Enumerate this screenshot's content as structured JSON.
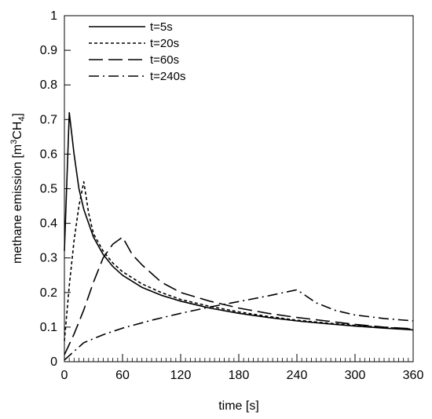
{
  "chart_data": {
    "type": "line",
    "title": "",
    "xlabel": "time [s]",
    "ylabel_main": "methane emission [m",
    "ylabel_sup": "3",
    "ylabel_mid": "CH",
    "ylabel_sub": "4",
    "ylabel_end": "]",
    "xlim": [
      0,
      360
    ],
    "ylim": [
      0,
      1
    ],
    "xticks": [
      0,
      60,
      120,
      180,
      240,
      300,
      360
    ],
    "yticks": [
      0,
      0.1,
      0.2,
      0.3,
      0.4,
      0.5,
      0.6,
      0.7,
      0.8,
      0.9,
      1
    ],
    "grid": false,
    "legend_position": "top-left",
    "series": [
      {
        "name": "t=5s",
        "dash": "solid",
        "x": [
          0,
          5,
          10,
          15,
          20,
          30,
          40,
          50,
          60,
          80,
          100,
          120,
          150,
          180,
          210,
          240,
          270,
          300,
          330,
          360
        ],
        "y": [
          0.32,
          0.72,
          0.6,
          0.5,
          0.44,
          0.36,
          0.31,
          0.275,
          0.25,
          0.215,
          0.192,
          0.175,
          0.155,
          0.14,
          0.128,
          0.118,
          0.11,
          0.103,
          0.097,
          0.092
        ]
      },
      {
        "name": "t=20s",
        "dash": "4,3",
        "x": [
          0,
          5,
          10,
          15,
          20,
          25,
          30,
          40,
          50,
          60,
          80,
          100,
          120,
          150,
          180,
          210,
          240,
          270,
          300,
          330,
          360
        ],
        "y": [
          0.06,
          0.22,
          0.35,
          0.45,
          0.52,
          0.43,
          0.37,
          0.32,
          0.285,
          0.26,
          0.225,
          0.2,
          0.18,
          0.16,
          0.144,
          0.131,
          0.12,
          0.112,
          0.105,
          0.099,
          0.094
        ]
      },
      {
        "name": "t=60s",
        "dash": "18,7",
        "x": [
          0,
          10,
          20,
          30,
          40,
          50,
          60,
          70,
          80,
          100,
          120,
          150,
          180,
          210,
          240,
          270,
          300,
          330,
          360
        ],
        "y": [
          0.02,
          0.08,
          0.15,
          0.23,
          0.3,
          0.34,
          0.36,
          0.31,
          0.28,
          0.23,
          0.2,
          0.175,
          0.155,
          0.14,
          0.128,
          0.118,
          0.108,
          0.1,
          0.095
        ]
      },
      {
        "name": "t=240s",
        "dash": "13,5,2,5",
        "x": [
          0,
          20,
          40,
          60,
          90,
          120,
          150,
          180,
          210,
          240,
          260,
          280,
          300,
          330,
          360
        ],
        "y": [
          0.005,
          0.055,
          0.078,
          0.097,
          0.12,
          0.14,
          0.158,
          0.174,
          0.19,
          0.208,
          0.17,
          0.148,
          0.135,
          0.125,
          0.118
        ]
      }
    ]
  }
}
